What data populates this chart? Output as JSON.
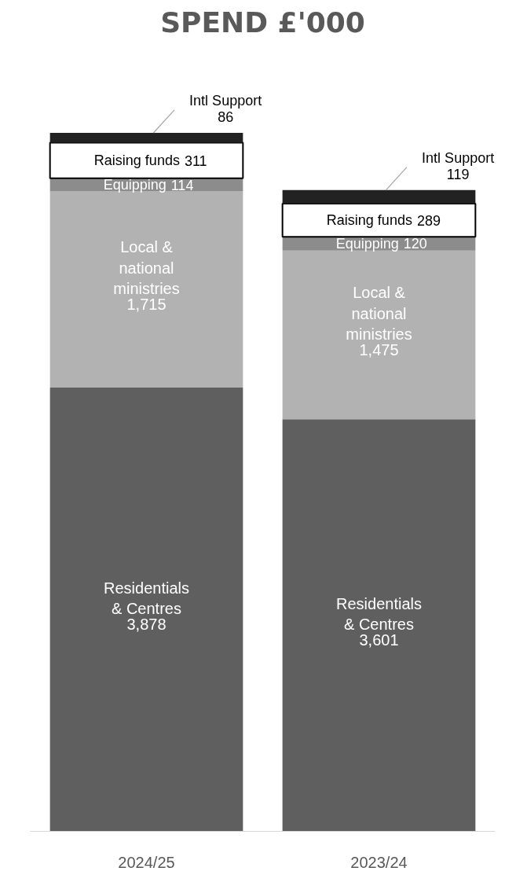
{
  "chart_data": {
    "type": "bar",
    "title": "SPEND £'000",
    "stacked": true,
    "legend": false,
    "grid": false,
    "categories": [
      "2024/25",
      "2023/24"
    ],
    "series": [
      {
        "name": "Residentials & Centres",
        "color": "#5f5f5f",
        "values": [
          3878,
          3601
        ],
        "value_labels": [
          "3,878",
          "3,601"
        ]
      },
      {
        "name": "Local & national ministries",
        "color": "#b2b2b2",
        "values": [
          1715,
          1475
        ],
        "value_labels": [
          "1,715",
          "1,475"
        ]
      },
      {
        "name": "Equipping",
        "color": "#8c8c8c",
        "values": [
          114,
          120
        ],
        "value_labels": [
          "114",
          "120"
        ]
      },
      {
        "name": "Raising funds",
        "color": "#ffffff",
        "values": [
          311,
          289
        ],
        "value_labels": [
          "311",
          "289"
        ]
      },
      {
        "name": "Intl Support",
        "color": "#222222",
        "values": [
          86,
          119
        ],
        "value_labels": [
          "86",
          "119"
        ]
      }
    ]
  }
}
